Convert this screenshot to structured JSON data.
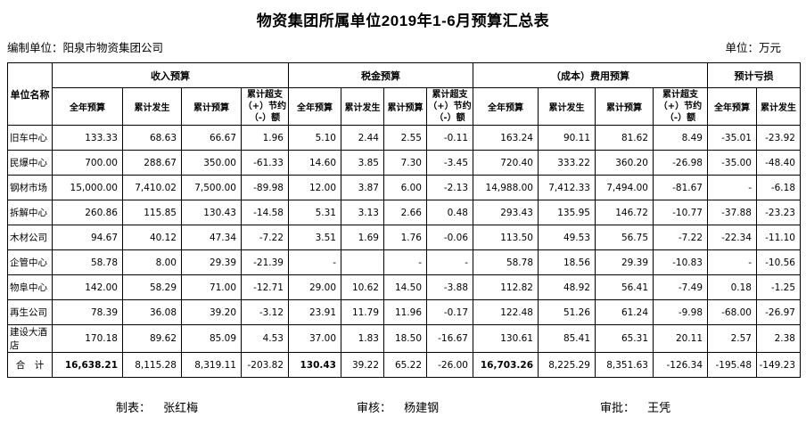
{
  "title": "物资集团所属单位2019年1-6月预算汇总表",
  "meta": {
    "prepared_by": "编制单位：阳泉市物资集团公司",
    "unit": "单位：万元"
  },
  "table": {
    "corner_header": "单位名称",
    "groups": [
      {
        "label": "收入预算",
        "cols": 4
      },
      {
        "label": "税金预算",
        "cols": 4
      },
      {
        "label": "（成本）费用预算",
        "cols": 4
      },
      {
        "label": "预计亏损",
        "cols": 2
      }
    ],
    "subheaders": [
      "全年预算",
      "累计发生",
      "累计预算",
      "累计超支\n（+）节约\n（-）额",
      "全年预算",
      "累计发生",
      "累计预算",
      "累计超支\n（+）节约\n（-）额",
      "全年预算",
      "累计发生",
      "累计预算",
      "累计超支\n（+）节约\n（-）额",
      "全年预算",
      "累计发生"
    ],
    "rows": [
      {
        "name": "旧车中心",
        "values": [
          "133.33",
          "68.63",
          "66.67",
          "1.96",
          "5.10",
          "2.44",
          "2.55",
          "-0.11",
          "163.24",
          "90.11",
          "81.62",
          "8.49",
          "-35.01",
          "-23.92"
        ]
      },
      {
        "name": "民爆中心",
        "values": [
          "700.00",
          "288.67",
          "350.00",
          "-61.33",
          "14.60",
          "3.85",
          "7.30",
          "-3.45",
          "720.40",
          "333.22",
          "360.20",
          "-26.98",
          "-35.00",
          "-48.40"
        ]
      },
      {
        "name": "钢材市场",
        "values": [
          "15,000.00",
          "7,410.02",
          "7,500.00",
          "-89.98",
          "12.00",
          "3.87",
          "6.00",
          "-2.13",
          "14,988.00",
          "7,412.33",
          "7,494.00",
          "-81.67",
          "-",
          "-6.18"
        ]
      },
      {
        "name": "拆解中心",
        "values": [
          "260.86",
          "115.85",
          "130.43",
          "-14.58",
          "5.31",
          "3.13",
          "2.66",
          "0.48",
          "293.43",
          "135.95",
          "146.72",
          "-10.77",
          "-37.88",
          "-23.23"
        ]
      },
      {
        "name": "木材公司",
        "values": [
          "94.67",
          "40.12",
          "47.34",
          "-7.22",
          "3.51",
          "1.69",
          "1.76",
          "-0.06",
          "113.50",
          "49.53",
          "56.75",
          "-7.22",
          "-22.34",
          "-11.10"
        ]
      },
      {
        "name": "企管中心",
        "values": [
          "58.78",
          "8.00",
          "29.39",
          "-21.39",
          "-",
          "",
          "-",
          "-",
          "58.78",
          "18.56",
          "29.39",
          "-10.83",
          "-",
          "-10.56"
        ]
      },
      {
        "name": "物阜中心",
        "values": [
          "142.00",
          "58.29",
          "71.00",
          "-12.71",
          "29.00",
          "10.62",
          "14.50",
          "-3.88",
          "112.82",
          "48.92",
          "56.41",
          "-7.49",
          "0.18",
          "-1.25"
        ]
      },
      {
        "name": "再生公司",
        "values": [
          "78.39",
          "36.08",
          "39.20",
          "-3.12",
          "23.91",
          "11.79",
          "11.96",
          "-0.17",
          "122.48",
          "51.26",
          "61.24",
          "-9.98",
          "-68.00",
          "-26.97"
        ]
      },
      {
        "name": "建设大酒店",
        "values": [
          "170.18",
          "89.62",
          "85.09",
          "4.53",
          "37.00",
          "1.83",
          "18.50",
          "-16.67",
          "130.61",
          "85.41",
          "65.31",
          "20.11",
          "2.57",
          "2.38"
        ]
      }
    ],
    "total": {
      "name": "合　计",
      "values": [
        "16,638.21",
        "8,115.28",
        "8,319.11",
        "-203.82",
        "130.43",
        "39.22",
        "65.22",
        "-26.00",
        "16,703.26",
        "8,225.29",
        "8,351.63",
        "-126.34",
        "-195.48",
        "-149.23"
      ],
      "bold_cols": [
        0,
        4,
        8
      ]
    }
  },
  "footer": {
    "items": [
      {
        "label": "制表：",
        "name": "张红梅"
      },
      {
        "label": "审核：",
        "name": "杨建钢"
      },
      {
        "label": "审批：",
        "name": "王凭"
      }
    ]
  }
}
